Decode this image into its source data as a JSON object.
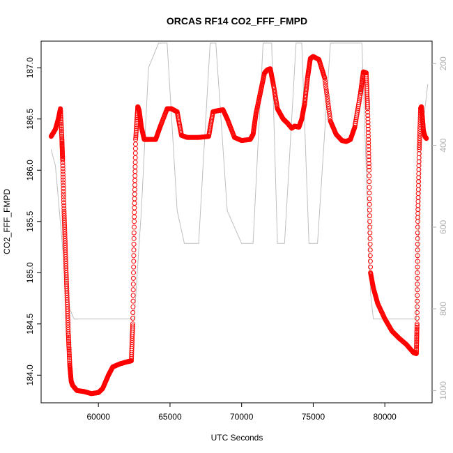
{
  "chart_data": {
    "type": "scatter",
    "title": "ORCAS RF14 CO2_FFF_FMPD",
    "xlabel": "UTC Seconds",
    "ylabel": "CO2_FFF_FMPD",
    "xlim": [
      56000,
      83300
    ],
    "ylim": [
      183.73,
      187.26
    ],
    "x_ticks": [
      60000,
      65000,
      70000,
      75000,
      80000
    ],
    "y_ticks": [
      184.0,
      184.5,
      185.0,
      185.5,
      186.0,
      186.5,
      187.0
    ],
    "x_tick_labels": [
      "60000",
      "65000",
      "70000",
      "75000",
      "80000"
    ],
    "y_tick_labels": [
      "184.0",
      "184.5",
      "185.0",
      "185.5",
      "186.0",
      "186.5",
      "187.0"
    ],
    "y2_lim": [
      1030,
      145
    ],
    "y2_ticks": [
      200,
      400,
      600,
      800,
      1000
    ],
    "y2_tick_labels": [
      "200",
      "400",
      "600",
      "800",
      "1000"
    ],
    "colors": {
      "co2": "#ff0000",
      "pressure": "#bebebe"
    },
    "series": [
      {
        "role": "co2",
        "marker": "open-circle",
        "x": [
          56700,
          57000,
          57200,
          57350,
          57450,
          57500,
          57600,
          57700,
          57800,
          57900,
          58000,
          58100,
          58200,
          58500,
          59000,
          59500,
          60000,
          60300,
          60700,
          61000,
          61500,
          62000,
          62300,
          62400,
          62500,
          62600,
          62750,
          62850,
          63000,
          63200,
          63500,
          64000,
          64300,
          64800,
          65100,
          65500,
          65800,
          66200,
          67000,
          67700,
          68000,
          68300,
          68700,
          69000,
          69500,
          70000,
          70600,
          70800,
          71000,
          71300,
          71600,
          71800,
          72000,
          72200,
          72500,
          72900,
          73200,
          73500,
          73700,
          74000,
          74200,
          74400,
          74600,
          74800,
          75000,
          75400,
          75800,
          76200,
          76600,
          77000,
          77300,
          77600,
          77900,
          78300,
          78500,
          78700,
          78800,
          78900,
          79000,
          79200,
          79500,
          80000,
          80500,
          81000,
          81500,
          82000,
          82200,
          82250,
          82300,
          82400,
          82500,
          82550,
          82600,
          82700,
          82800,
          82900
        ],
        "y": [
          186.33,
          186.4,
          186.5,
          186.6,
          186.3,
          186.1,
          185.6,
          185.2,
          184.8,
          184.4,
          184.1,
          183.94,
          183.9,
          183.85,
          183.84,
          183.82,
          183.83,
          183.87,
          184.0,
          184.08,
          184.11,
          184.13,
          184.14,
          184.5,
          185.5,
          186.3,
          186.62,
          186.58,
          186.42,
          186.3,
          186.3,
          186.3,
          186.42,
          186.6,
          186.6,
          186.57,
          186.34,
          186.32,
          186.32,
          186.33,
          186.57,
          186.58,
          186.59,
          186.5,
          186.32,
          186.29,
          186.3,
          186.35,
          186.55,
          186.75,
          186.95,
          186.98,
          186.99,
          186.85,
          186.6,
          186.5,
          186.46,
          186.41,
          186.43,
          186.42,
          186.5,
          186.65,
          186.9,
          187.09,
          187.11,
          187.08,
          186.9,
          186.48,
          186.35,
          186.29,
          186.28,
          186.3,
          186.42,
          186.75,
          186.96,
          186.95,
          186.6,
          186.0,
          185.0,
          184.85,
          184.7,
          184.55,
          184.43,
          184.36,
          184.3,
          184.22,
          184.21,
          184.5,
          185.5,
          186.2,
          186.6,
          186.62,
          186.55,
          186.38,
          186.33,
          186.31
        ]
      },
      {
        "role": "pressure",
        "marker": "line",
        "x": [
          56700,
          57000,
          57500,
          58000,
          58300,
          62500,
          63000,
          63500,
          64200,
          64800,
          65500,
          66000,
          67000,
          67800,
          68200,
          69000,
          70000,
          70800,
          71500,
          71900,
          72100,
          72500,
          73000,
          73800,
          74200,
          74700,
          75300,
          76200,
          77000,
          77500,
          78400,
          78800,
          79000,
          79200,
          82200,
          82500,
          83000
        ],
        "y": [
          410,
          450,
          650,
          800,
          825,
          825,
          560,
          210,
          150,
          150,
          560,
          640,
          640,
          150,
          150,
          560,
          640,
          640,
          150,
          150,
          150,
          640,
          640,
          150,
          150,
          640,
          640,
          150,
          150,
          150,
          150,
          560,
          760,
          825,
          825,
          400,
          250
        ]
      }
    ]
  }
}
